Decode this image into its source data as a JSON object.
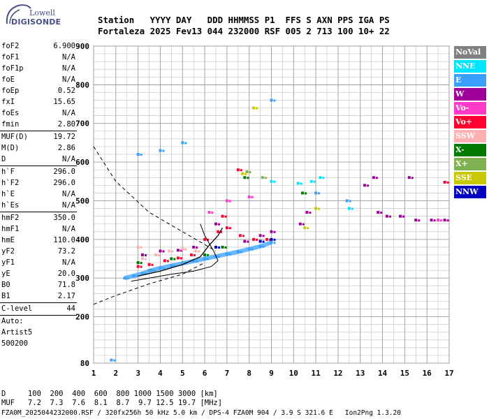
{
  "logo": {
    "line1": "Lowell",
    "line2": "DIGISONDE"
  },
  "header": {
    "row1": "Station   YYYY DAY   DDD HHMMSS P1  FFS S AXN PPS IGA PS",
    "row2": "Fortaleza 2025 Fev13 044 232000 RSF 005 2 713 100 10+ 22"
  },
  "params": [
    {
      "k": "foF2",
      "v": "6.900",
      "sep": false
    },
    {
      "k": "foF1",
      "v": "N/A",
      "sep": false
    },
    {
      "k": "foF1p",
      "v": "N/A",
      "sep": false
    },
    {
      "k": "foE",
      "v": "N/A",
      "sep": false
    },
    {
      "k": "foEp",
      "v": "0.52",
      "sep": false
    },
    {
      "k": "fxI",
      "v": "15.65",
      "sep": false
    },
    {
      "k": "foEs",
      "v": "N/A",
      "sep": false
    },
    {
      "k": "fmin",
      "v": "2.80",
      "sep": true
    },
    {
      "k": "MUF(D)",
      "v": "19.72",
      "sep": false
    },
    {
      "k": "M(D)",
      "v": "2.86",
      "sep": false
    },
    {
      "k": "D",
      "v": "N/A",
      "sep": true
    },
    {
      "k": "h`F",
      "v": "296.0",
      "sep": false
    },
    {
      "k": "h`F2",
      "v": "296.0",
      "sep": false
    },
    {
      "k": "h`E",
      "v": "N/A",
      "sep": false
    },
    {
      "k": "h`Es",
      "v": "N/A",
      "sep": true
    },
    {
      "k": "hmF2",
      "v": "350.0",
      "sep": false
    },
    {
      "k": "hmF1",
      "v": "N/A",
      "sep": false
    },
    {
      "k": "hmE",
      "v": "110.0",
      "sep": false
    },
    {
      "k": "yF2",
      "v": "73.2",
      "sep": false
    },
    {
      "k": "yF1",
      "v": "N/A",
      "sep": false
    },
    {
      "k": "yE",
      "v": "20.0",
      "sep": false
    },
    {
      "k": "B0",
      "v": "71.8",
      "sep": false
    },
    {
      "k": "B1",
      "v": "2.17",
      "sep": true
    },
    {
      "k": "C-level",
      "v": "44",
      "sep": true
    },
    {
      "k": "Auto:",
      "v": "",
      "sep": false
    },
    {
      "k": "Artist5",
      "v": "",
      "sep": false
    },
    {
      "k": "500200",
      "v": "",
      "sep": false
    }
  ],
  "legend": [
    {
      "label": "NoVal",
      "color": "#808080"
    },
    {
      "label": "NNE",
      "color": "#00e5ff"
    },
    {
      "label": "E",
      "color": "#3aa0ff"
    },
    {
      "label": "W",
      "color": "#a0009a"
    },
    {
      "label": "Vo-",
      "color": "#ff3ac8"
    },
    {
      "label": "Vo+",
      "color": "#ff0030"
    },
    {
      "label": "SSW",
      "color": "#ffb0b0"
    },
    {
      "label": "X-",
      "color": "#007a00"
    },
    {
      "label": "X+",
      "color": "#80b050"
    },
    {
      "label": "SSE",
      "color": "#c8c800"
    },
    {
      "label": "NNW",
      "color": "#0000c0"
    }
  ],
  "chart_data": {
    "type": "scatter",
    "xlabel": "",
    "ylabel": "",
    "xlim": [
      1,
      17
    ],
    "ylim": [
      80,
      900
    ],
    "x_ticks": [
      1,
      2,
      3,
      4,
      5,
      6,
      7,
      8,
      9,
      10,
      11,
      12,
      13,
      14,
      15,
      16,
      17
    ],
    "y_ticks": [
      80,
      200,
      300,
      400,
      500,
      600,
      700,
      800,
      900
    ],
    "grid": true,
    "series": [
      {
        "name": "E",
        "color": "#3aa0ff",
        "points": [
          [
            2.4,
            300
          ],
          [
            2.8,
            306
          ],
          [
            3.2,
            312
          ],
          [
            3.6,
            320
          ],
          [
            4.0,
            326
          ],
          [
            4.5,
            332
          ],
          [
            5.0,
            338
          ],
          [
            5.5,
            344
          ],
          [
            6.0,
            350
          ],
          [
            6.5,
            356
          ],
          [
            7.0,
            362
          ],
          [
            7.5,
            368
          ],
          [
            8.0,
            375
          ],
          [
            8.5,
            382
          ],
          [
            9.0,
            392
          ],
          [
            1.8,
            88
          ],
          [
            3.0,
            620
          ],
          [
            4.0,
            630
          ],
          [
            5.0,
            650
          ],
          [
            9.0,
            760
          ],
          [
            11.0,
            520
          ],
          [
            12.4,
            500
          ]
        ]
      },
      {
        "name": "Vo+",
        "color": "#ff0030",
        "points": [
          [
            3.0,
            330
          ],
          [
            3.5,
            335
          ],
          [
            4.2,
            345
          ],
          [
            4.8,
            352
          ],
          [
            5.4,
            360
          ],
          [
            6.0,
            400
          ],
          [
            6.6,
            420
          ],
          [
            7.0,
            430
          ],
          [
            7.6,
            410
          ],
          [
            8.2,
            400
          ],
          [
            8.8,
            400
          ],
          [
            6.8,
            460
          ],
          [
            7.5,
            580
          ],
          [
            16.8,
            548
          ]
        ]
      },
      {
        "name": "W",
        "color": "#a0009a",
        "points": [
          [
            3.2,
            360
          ],
          [
            4.0,
            370
          ],
          [
            4.8,
            372
          ],
          [
            5.5,
            380
          ],
          [
            6.5,
            440
          ],
          [
            7.8,
            395
          ],
          [
            8.5,
            410
          ],
          [
            9.0,
            420
          ],
          [
            10.3,
            440
          ],
          [
            10.6,
            470
          ],
          [
            13.2,
            540
          ],
          [
            13.8,
            470
          ],
          [
            14.2,
            460
          ],
          [
            14.8,
            460
          ],
          [
            15.5,
            450
          ],
          [
            16.2,
            450
          ],
          [
            16.8,
            450
          ],
          [
            13.6,
            560
          ],
          [
            15.2,
            560
          ]
        ]
      },
      {
        "name": "SSW",
        "color": "#ffb0b0",
        "points": [
          [
            3.2,
            350
          ],
          [
            3.8,
            360
          ],
          [
            4.4,
            370
          ],
          [
            5.0,
            375
          ],
          [
            5.6,
            370
          ],
          [
            3.0,
            380
          ]
        ]
      },
      {
        "name": "X-",
        "color": "#007a00",
        "points": [
          [
            3.0,
            340
          ],
          [
            4.5,
            350
          ],
          [
            6.0,
            360
          ],
          [
            6.8,
            380
          ],
          [
            7.8,
            560
          ],
          [
            10.4,
            520
          ]
        ]
      },
      {
        "name": "X+",
        "color": "#80b050",
        "points": [
          [
            3.5,
            320
          ],
          [
            5.0,
            340
          ],
          [
            7.9,
            575
          ],
          [
            8.6,
            560
          ]
        ]
      },
      {
        "name": "SSE",
        "color": "#c8c800",
        "points": [
          [
            7.7,
            570
          ],
          [
            8.2,
            740
          ],
          [
            10.5,
            430
          ],
          [
            11.0,
            480
          ]
        ]
      },
      {
        "name": "NNE",
        "color": "#00e5ff",
        "points": [
          [
            10.2,
            545
          ],
          [
            10.8,
            550
          ],
          [
            11.2,
            560
          ],
          [
            12.5,
            480
          ],
          [
            9.0,
            550
          ]
        ]
      },
      {
        "name": "NNW",
        "color": "#0000c0",
        "points": [
          [
            6.5,
            380
          ],
          [
            8.5,
            395
          ],
          [
            9.0,
            400
          ]
        ]
      },
      {
        "name": "Vo-",
        "color": "#ff3ac8",
        "points": [
          [
            6.2,
            470
          ],
          [
            7.0,
            500
          ],
          [
            8.0,
            510
          ],
          [
            16.5,
            450
          ]
        ]
      }
    ]
  },
  "muf_table": {
    "row1": "D     100  200  400  600  800 1000 1500 3000 [km]",
    "row2": "MUF   7.2  7.3  7.6  8.1  8.7  9.7 12.5 19.7 [MHz]"
  },
  "footer": "FZA0M_2025044232000.RSF / 320fx256h 50 kHz 5.0 km / DPS-4 FZA0M 904 / 3.9 S 321.6 E   Ion2Png 1.3.20"
}
